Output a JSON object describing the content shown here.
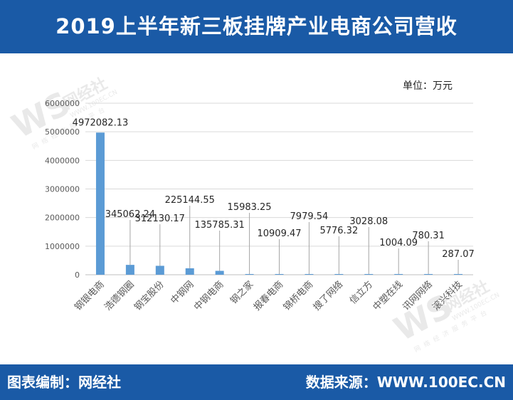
{
  "header": {
    "title": "2019上半年新三板挂牌产业电商公司营收"
  },
  "unit_label": "单位：万元",
  "footer": {
    "left": "图表编制：网经社",
    "right": "数据来源：WWW.100EC.CN"
  },
  "watermarks": [
    {
      "brand": "网经社",
      "url": "WWW.100EC.CN",
      "tagline": "网络经济服务平台"
    },
    {
      "brand": "网经社",
      "url": "WWW.100EC.CN",
      "tagline": "网络经济服务平台"
    }
  ],
  "colors": {
    "bar": "#5b9bd5",
    "header_bg": "#1a5aa6",
    "grid": "#d9d9d9",
    "axis_text": "#595959"
  },
  "chart_data": {
    "type": "bar",
    "categories": [
      "钢银电商",
      "浩德钢圈",
      "钢宝股份",
      "中钢网",
      "中钢电商",
      "钢之家",
      "报春电商",
      "锦桥电商",
      "搜了网络",
      "信立方",
      "中塑在线",
      "讯网网络",
      "滚兴科技"
    ],
    "values": [
      4972082.13,
      345062.24,
      312130.17,
      225144.55,
      135785.31,
      15983.25,
      10909.47,
      7979.54,
      5776.32,
      3028.08,
      1004.09,
      780.31,
      287.07
    ],
    "value_labels": [
      "4972082.13",
      "345062.24",
      "312130.17",
      "225144.55",
      "135785.31",
      "15983.25",
      "10909.47",
      "7979.54",
      "5776.32",
      "3028.08",
      "1004.09",
      "780.31",
      "287.07"
    ],
    "ylim": [
      0,
      6000000
    ],
    "yticks": [
      0,
      1000000,
      2000000,
      3000000,
      4000000,
      5000000,
      6000000
    ],
    "ytick_labels": [
      "0",
      "1000000",
      "2000000",
      "3000000",
      "4000000",
      "5000000",
      "6000000"
    ],
    "grid": true,
    "xlabel": "",
    "ylabel": ""
  }
}
